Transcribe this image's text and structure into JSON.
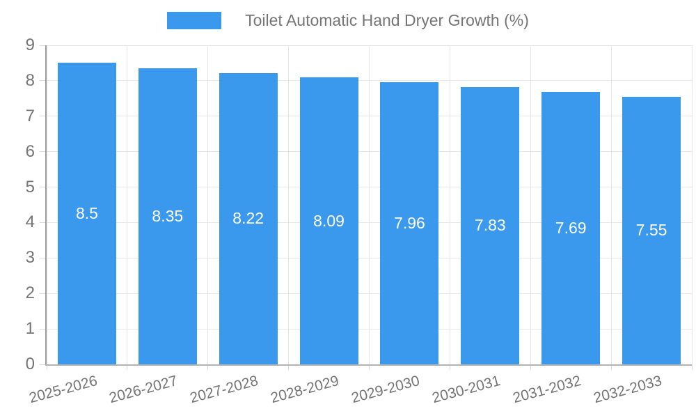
{
  "legend": {
    "label": "Toilet Automatic Hand Dryer Growth (%)"
  },
  "chart_data": {
    "type": "bar",
    "title": "Toilet Automatic Hand Dryer Growth (%)",
    "categories": [
      "2025-2026",
      "2026-2027",
      "2027-2028",
      "2028-2029",
      "2029-2030",
      "2030-2031",
      "2031-2032",
      "2032-2033"
    ],
    "values": [
      8.5,
      8.35,
      8.22,
      8.09,
      7.96,
      7.83,
      7.69,
      7.55
    ],
    "bar_labels": [
      "8.5",
      "8.35",
      "8.22",
      "8.09",
      "7.96",
      "7.83",
      "7.69",
      "7.55"
    ],
    "xlabel": "",
    "ylabel": "",
    "ylim": [
      0,
      9
    ],
    "y_ticks": [
      0,
      1,
      2,
      3,
      4,
      5,
      6,
      7,
      8,
      9
    ],
    "grid": true,
    "legend_position": "top",
    "colors": {
      "bar": "#3a99ec",
      "bar_value_text": "#ffffff",
      "legend_text": "#757575",
      "tick_text": "#757575",
      "gridline": "#e7e7e7",
      "tick_mark": "#d9d9d9",
      "axis_line_left": "#9e9e9e",
      "axis_line_bottom": "#b3b3b3",
      "background": "#ffffff"
    }
  }
}
